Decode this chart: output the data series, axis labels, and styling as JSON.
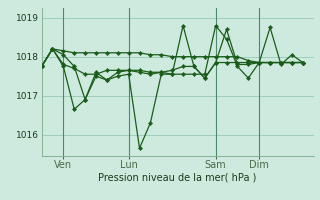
{
  "background_color": "#ceeade",
  "grid_color": "#9ecfba",
  "line_color": "#1a5c1a",
  "marker_color": "#1a5c1a",
  "vline_color": "#4a8a6a",
  "x_tick_labels": [
    "Ven",
    "Lun",
    "Sam",
    "Dim"
  ],
  "x_tick_positions": [
    1,
    4,
    8,
    10
  ],
  "x_vlines": [
    1,
    4,
    8,
    10
  ],
  "xlabel": "Pression niveau de la mer( hPa )",
  "ylim": [
    1015.45,
    1019.25
  ],
  "xlim": [
    0,
    12.5
  ],
  "yticks": [
    1016,
    1017,
    1018,
    1019
  ],
  "series": [
    [
      [
        0.0,
        0.5,
        1.0,
        1.5,
        2.0,
        2.5,
        3.0,
        3.5,
        4.0,
        4.5,
        5.0,
        5.5,
        6.0,
        6.5,
        7.0,
        7.5,
        8.0,
        8.5,
        9.0,
        9.5,
        10.0,
        10.5,
        11.0,
        11.5,
        12.0
      ],
      [
        1017.75,
        1018.2,
        1018.15,
        1018.1,
        1018.1,
        1018.1,
        1018.1,
        1018.1,
        1018.1,
        1018.1,
        1018.05,
        1018.05,
        1018.0,
        1018.0,
        1018.0,
        1018.0,
        1018.0,
        1018.0,
        1018.0,
        1017.9,
        1017.85,
        1017.85,
        1017.85,
        1017.85,
        1017.85
      ]
    ],
    [
      [
        0.0,
        0.5,
        1.0,
        1.5,
        2.0,
        2.5,
        3.0,
        3.5,
        4.0,
        4.5,
        5.0,
        5.5,
        6.0,
        6.5,
        7.0,
        7.5,
        8.0,
        8.5,
        9.0,
        9.5,
        10.0,
        10.5,
        11.0,
        11.5,
        12.0
      ],
      [
        1017.75,
        1018.2,
        1018.05,
        1017.75,
        1016.9,
        1017.5,
        1017.4,
        1017.6,
        1017.65,
        1017.6,
        1017.55,
        1017.6,
        1017.55,
        1017.55,
        1017.55,
        1017.55,
        1018.8,
        1018.45,
        1017.75,
        1017.45,
        1017.85,
        1018.75,
        1017.8,
        1018.05,
        1017.85
      ]
    ],
    [
      [
        0.0,
        0.5,
        1.0,
        1.5,
        2.0,
        2.5,
        3.0,
        3.5,
        4.0,
        4.5,
        5.0,
        5.5,
        6.0,
        6.5,
        7.0,
        7.5,
        8.0,
        8.5,
        9.0,
        9.5,
        10.0,
        10.5,
        11.0,
        11.5,
        12.0
      ],
      [
        1017.75,
        1018.2,
        1017.75,
        1016.65,
        1016.9,
        1017.6,
        1017.4,
        1017.5,
        1017.55,
        1015.65,
        1016.3,
        1017.55,
        1017.55,
        1018.8,
        1017.75,
        1017.45,
        1017.85,
        1018.7,
        1017.8,
        1017.8,
        1017.85,
        1017.85,
        1017.85,
        1017.85,
        1017.85
      ]
    ],
    [
      [
        0.0,
        0.5,
        1.0,
        1.5,
        2.0,
        2.5,
        3.0,
        3.5,
        4.0,
        4.5,
        5.0,
        5.5,
        6.0,
        6.5,
        7.0,
        7.5,
        8.0,
        8.5,
        9.0,
        9.5,
        10.0,
        10.5,
        11.0,
        11.5,
        12.0
      ],
      [
        1017.75,
        1018.2,
        1017.8,
        1017.7,
        1017.55,
        1017.55,
        1017.65,
        1017.65,
        1017.65,
        1017.65,
        1017.6,
        1017.6,
        1017.65,
        1017.75,
        1017.75,
        1017.45,
        1017.85,
        1017.85,
        1017.85,
        1017.85,
        1017.85,
        1017.85,
        1017.85,
        1017.85,
        1017.85
      ]
    ]
  ]
}
